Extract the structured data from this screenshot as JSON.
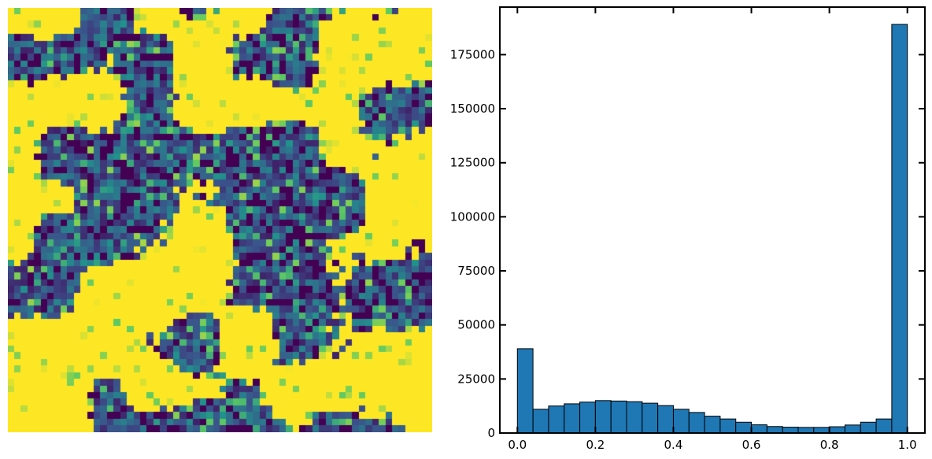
{
  "chart_data": [
    {
      "type": "heatmap",
      "grid_size": [
        64,
        64
      ],
      "colormap": "viridis",
      "value_range": [
        0,
        1
      ],
      "axes_visible": false,
      "pattern": "yellow (value 1.0) blobs on a mottled purple/teal background"
    },
    {
      "type": "bar",
      "subtype": "histogram",
      "bin_edges": [
        0.0,
        0.04,
        0.08,
        0.12,
        0.16,
        0.2,
        0.24,
        0.28,
        0.32,
        0.36,
        0.4,
        0.44,
        0.48,
        0.52,
        0.56,
        0.6,
        0.64,
        0.68,
        0.72,
        0.76,
        0.8,
        0.84,
        0.88,
        0.92,
        0.96,
        1.0
      ],
      "values": [
        39000,
        11000,
        12500,
        13500,
        14300,
        15000,
        14800,
        14500,
        13800,
        12700,
        11000,
        9500,
        7800,
        6500,
        5000,
        3800,
        3000,
        2700,
        2600,
        2600,
        2900,
        3700,
        5000,
        6500,
        189000
      ],
      "xlim": [
        -0.045,
        1.045
      ],
      "ylim": [
        0,
        197000
      ],
      "xticks": [
        "0.0",
        "0.2",
        "0.4",
        "0.6",
        "0.8",
        "1.0"
      ],
      "yticks": [
        "0",
        "25000",
        "50000",
        "75000",
        "100000",
        "125000",
        "150000",
        "175000"
      ],
      "bar_color": "#1f77b4",
      "edge_color": "#000000",
      "grid": false
    }
  ]
}
